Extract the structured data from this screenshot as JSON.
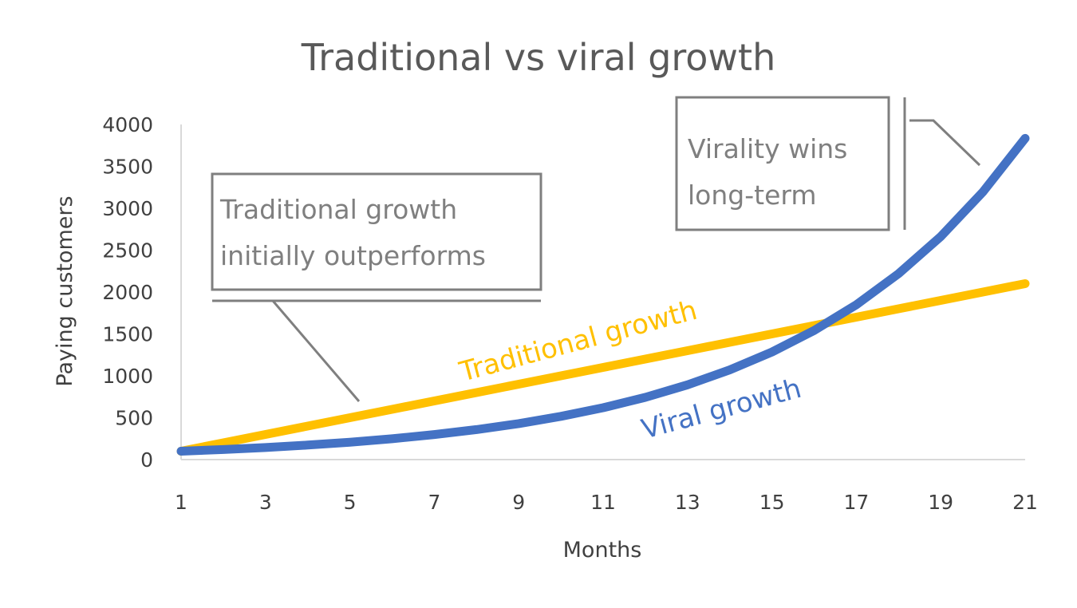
{
  "chart_data": {
    "type": "line",
    "title": "Traditional vs viral growth",
    "xlabel": "Months",
    "ylabel": "Paying customers",
    "xlim": [
      1,
      21
    ],
    "ylim": [
      0,
      4000
    ],
    "x_ticks": [
      1,
      3,
      5,
      7,
      9,
      11,
      13,
      15,
      17,
      19,
      21
    ],
    "y_ticks": [
      0,
      500,
      1000,
      1500,
      2000,
      2500,
      3000,
      3500,
      4000
    ],
    "grid": false,
    "legend": "none (series labeled inline)",
    "x": [
      1,
      2,
      3,
      4,
      5,
      6,
      7,
      8,
      9,
      10,
      11,
      12,
      13,
      14,
      15,
      16,
      17,
      18,
      19,
      20,
      21
    ],
    "series": [
      {
        "name": "Traditional growth",
        "color": "#FFC000",
        "values": [
          100,
          200,
          300,
          400,
          500,
          600,
          700,
          800,
          900,
          1000,
          1100,
          1200,
          1300,
          1400,
          1500,
          1600,
          1700,
          1800,
          1900,
          2000,
          2100
        ]
      },
      {
        "name": "Viral growth",
        "color": "#4472C4",
        "values": [
          100,
          120,
          144,
          173,
          207,
          249,
          299,
          358,
          430,
          516,
          619,
          743,
          892,
          1070,
          1284,
          1541,
          1849,
          2219,
          2662,
          3195,
          3834
        ]
      }
    ],
    "annotations": [
      {
        "text": [
          "Traditional growth",
          "initially outperforms"
        ],
        "points_to": "Traditional growth"
      },
      {
        "text": [
          "Virality wins",
          "long-term"
        ],
        "points_to": "Viral growth"
      }
    ]
  }
}
